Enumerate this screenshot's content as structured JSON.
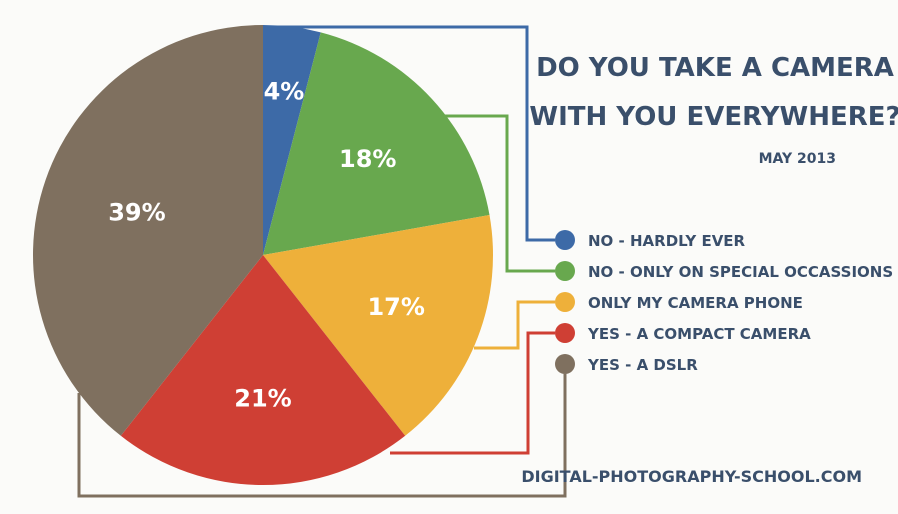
{
  "chart_data": {
    "type": "pie",
    "title_lines": [
      "DO YOU TAKE A CAMERA",
      "WITH YOU EVERYWHERE?"
    ],
    "subtitle": "MAY 2013",
    "source": "DIGITAL-PHOTOGRAPHY-SCHOOL.COM",
    "slices": [
      {
        "label": "NO - HARDLY EVER",
        "value": 4,
        "display": "4%",
        "color": "#3d6aa7"
      },
      {
        "label": "NO - ONLY ON SPECIAL OCCASSIONS",
        "value": 18,
        "display": "18%",
        "color": "#68a84e"
      },
      {
        "label": "ONLY MY CAMERA PHONE",
        "value": 17,
        "display": "17%",
        "color": "#eeb03a"
      },
      {
        "label": "YES -  A COMPACT CAMERA",
        "value": 21,
        "display": "21%",
        "color": "#cf3f34"
      },
      {
        "label": "YES - A DSLR",
        "value": 39,
        "display": "39%",
        "color": "#7f705f"
      }
    ],
    "legend_position": "right",
    "title_color": "#3a4f6b"
  }
}
